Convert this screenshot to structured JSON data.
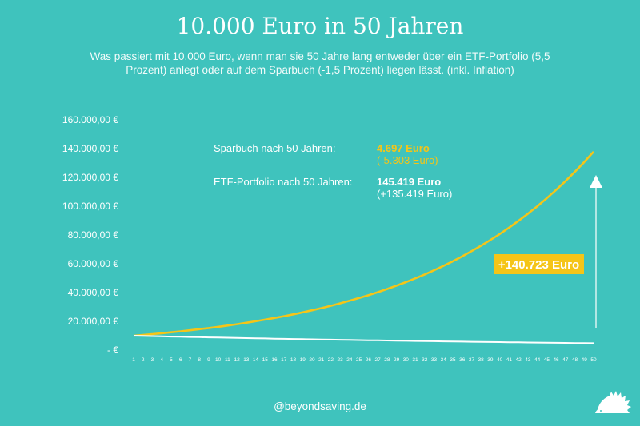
{
  "page": {
    "title": "10.000 Euro in 50 Jahren",
    "subtitle": "Was passiert mit 10.000 Euro, wenn man sie 50 Jahre lang entweder über ein ETF-Portfolio (5,5 Prozent) anlegt oder auf dem Sparbuch (-1,5 Prozent) liegen lässt. (inkl. Inflation)",
    "footer": "@beyondsaving.de"
  },
  "colors": {
    "background": "#3fc3bd",
    "etf": "#f5c518",
    "sparbuch": "#ffffff",
    "axis_text": "#ffffff",
    "badge_text": "#ffffff"
  },
  "annotations": {
    "sparbuch_label": "Sparbuch nach 50 Jahren:",
    "sparbuch_value": "4.697 Euro",
    "sparbuch_diff": "(-5.303 Euro)",
    "etf_label": "ETF-Portfolio nach 50 Jahren:",
    "etf_value": "145.419 Euro",
    "etf_diff": "(+135.419 Euro)",
    "difference_badge": "+140.723 Euro"
  },
  "icons": {
    "logo": "hedgehog-icon",
    "arrow": "arrow-up-icon"
  },
  "chart_data": {
    "type": "line",
    "title": "10.000 Euro in 50 Jahren",
    "xlabel": "",
    "ylabel": "",
    "ylim": [
      0,
      160000
    ],
    "yticks": [
      {
        "value": 0,
        "label": "-   €"
      },
      {
        "value": 20000,
        "label": "20.000,00 €"
      },
      {
        "value": 40000,
        "label": "40.000,00 €"
      },
      {
        "value": 60000,
        "label": "60.000,00 €"
      },
      {
        "value": 80000,
        "label": "80.000,00 €"
      },
      {
        "value": 100000,
        "label": "100.000,00 €"
      },
      {
        "value": 120000,
        "label": "120.000,00 €"
      },
      {
        "value": 140000,
        "label": "140.000,00 €"
      },
      {
        "value": 160000,
        "label": "160.000,00 €"
      }
    ],
    "x": [
      1,
      2,
      3,
      4,
      5,
      6,
      7,
      8,
      9,
      10,
      11,
      12,
      13,
      14,
      15,
      16,
      17,
      18,
      19,
      20,
      21,
      22,
      23,
      24,
      25,
      26,
      27,
      28,
      29,
      30,
      31,
      32,
      33,
      34,
      35,
      36,
      37,
      38,
      39,
      40,
      41,
      42,
      43,
      44,
      45,
      46,
      47,
      48,
      49,
      50
    ],
    "grid": false,
    "legend": "none",
    "series": [
      {
        "key": "etf",
        "values": [
          10000,
          10550,
          11130,
          11742,
          12388,
          13070,
          13788,
          14547,
          15347,
          16191,
          17081,
          18021,
          19012,
          20058,
          21161,
          22325,
          23552,
          24848,
          26214,
          27656,
          29177,
          30782,
          32475,
          34261,
          36146,
          38134,
          40231,
          42444,
          44778,
          47241,
          49839,
          52580,
          55472,
          58523,
          61741,
          65137,
          68720,
          72499,
          76487,
          80694,
          85132,
          89814,
          94754,
          99965,
          105463,
          111264,
          117383,
          123839,
          130650,
          137836
        ]
      },
      {
        "key": "sparbuch",
        "values": [
          10000,
          9850,
          9702,
          9557,
          9413,
          9272,
          9133,
          8996,
          8861,
          8728,
          8597,
          8468,
          8341,
          8216,
          8093,
          7972,
          7852,
          7734,
          7618,
          7504,
          7392,
          7281,
          7171,
          7064,
          6958,
          6853,
          6751,
          6649,
          6550,
          6451,
          6355,
          6259,
          6165,
          6073,
          5982,
          5892,
          5804,
          5717,
          5631,
          5547,
          5463,
          5381,
          5301,
          5221,
          5143,
          5066,
          4990,
          4915,
          4841,
          4769
        ]
      }
    ]
  }
}
